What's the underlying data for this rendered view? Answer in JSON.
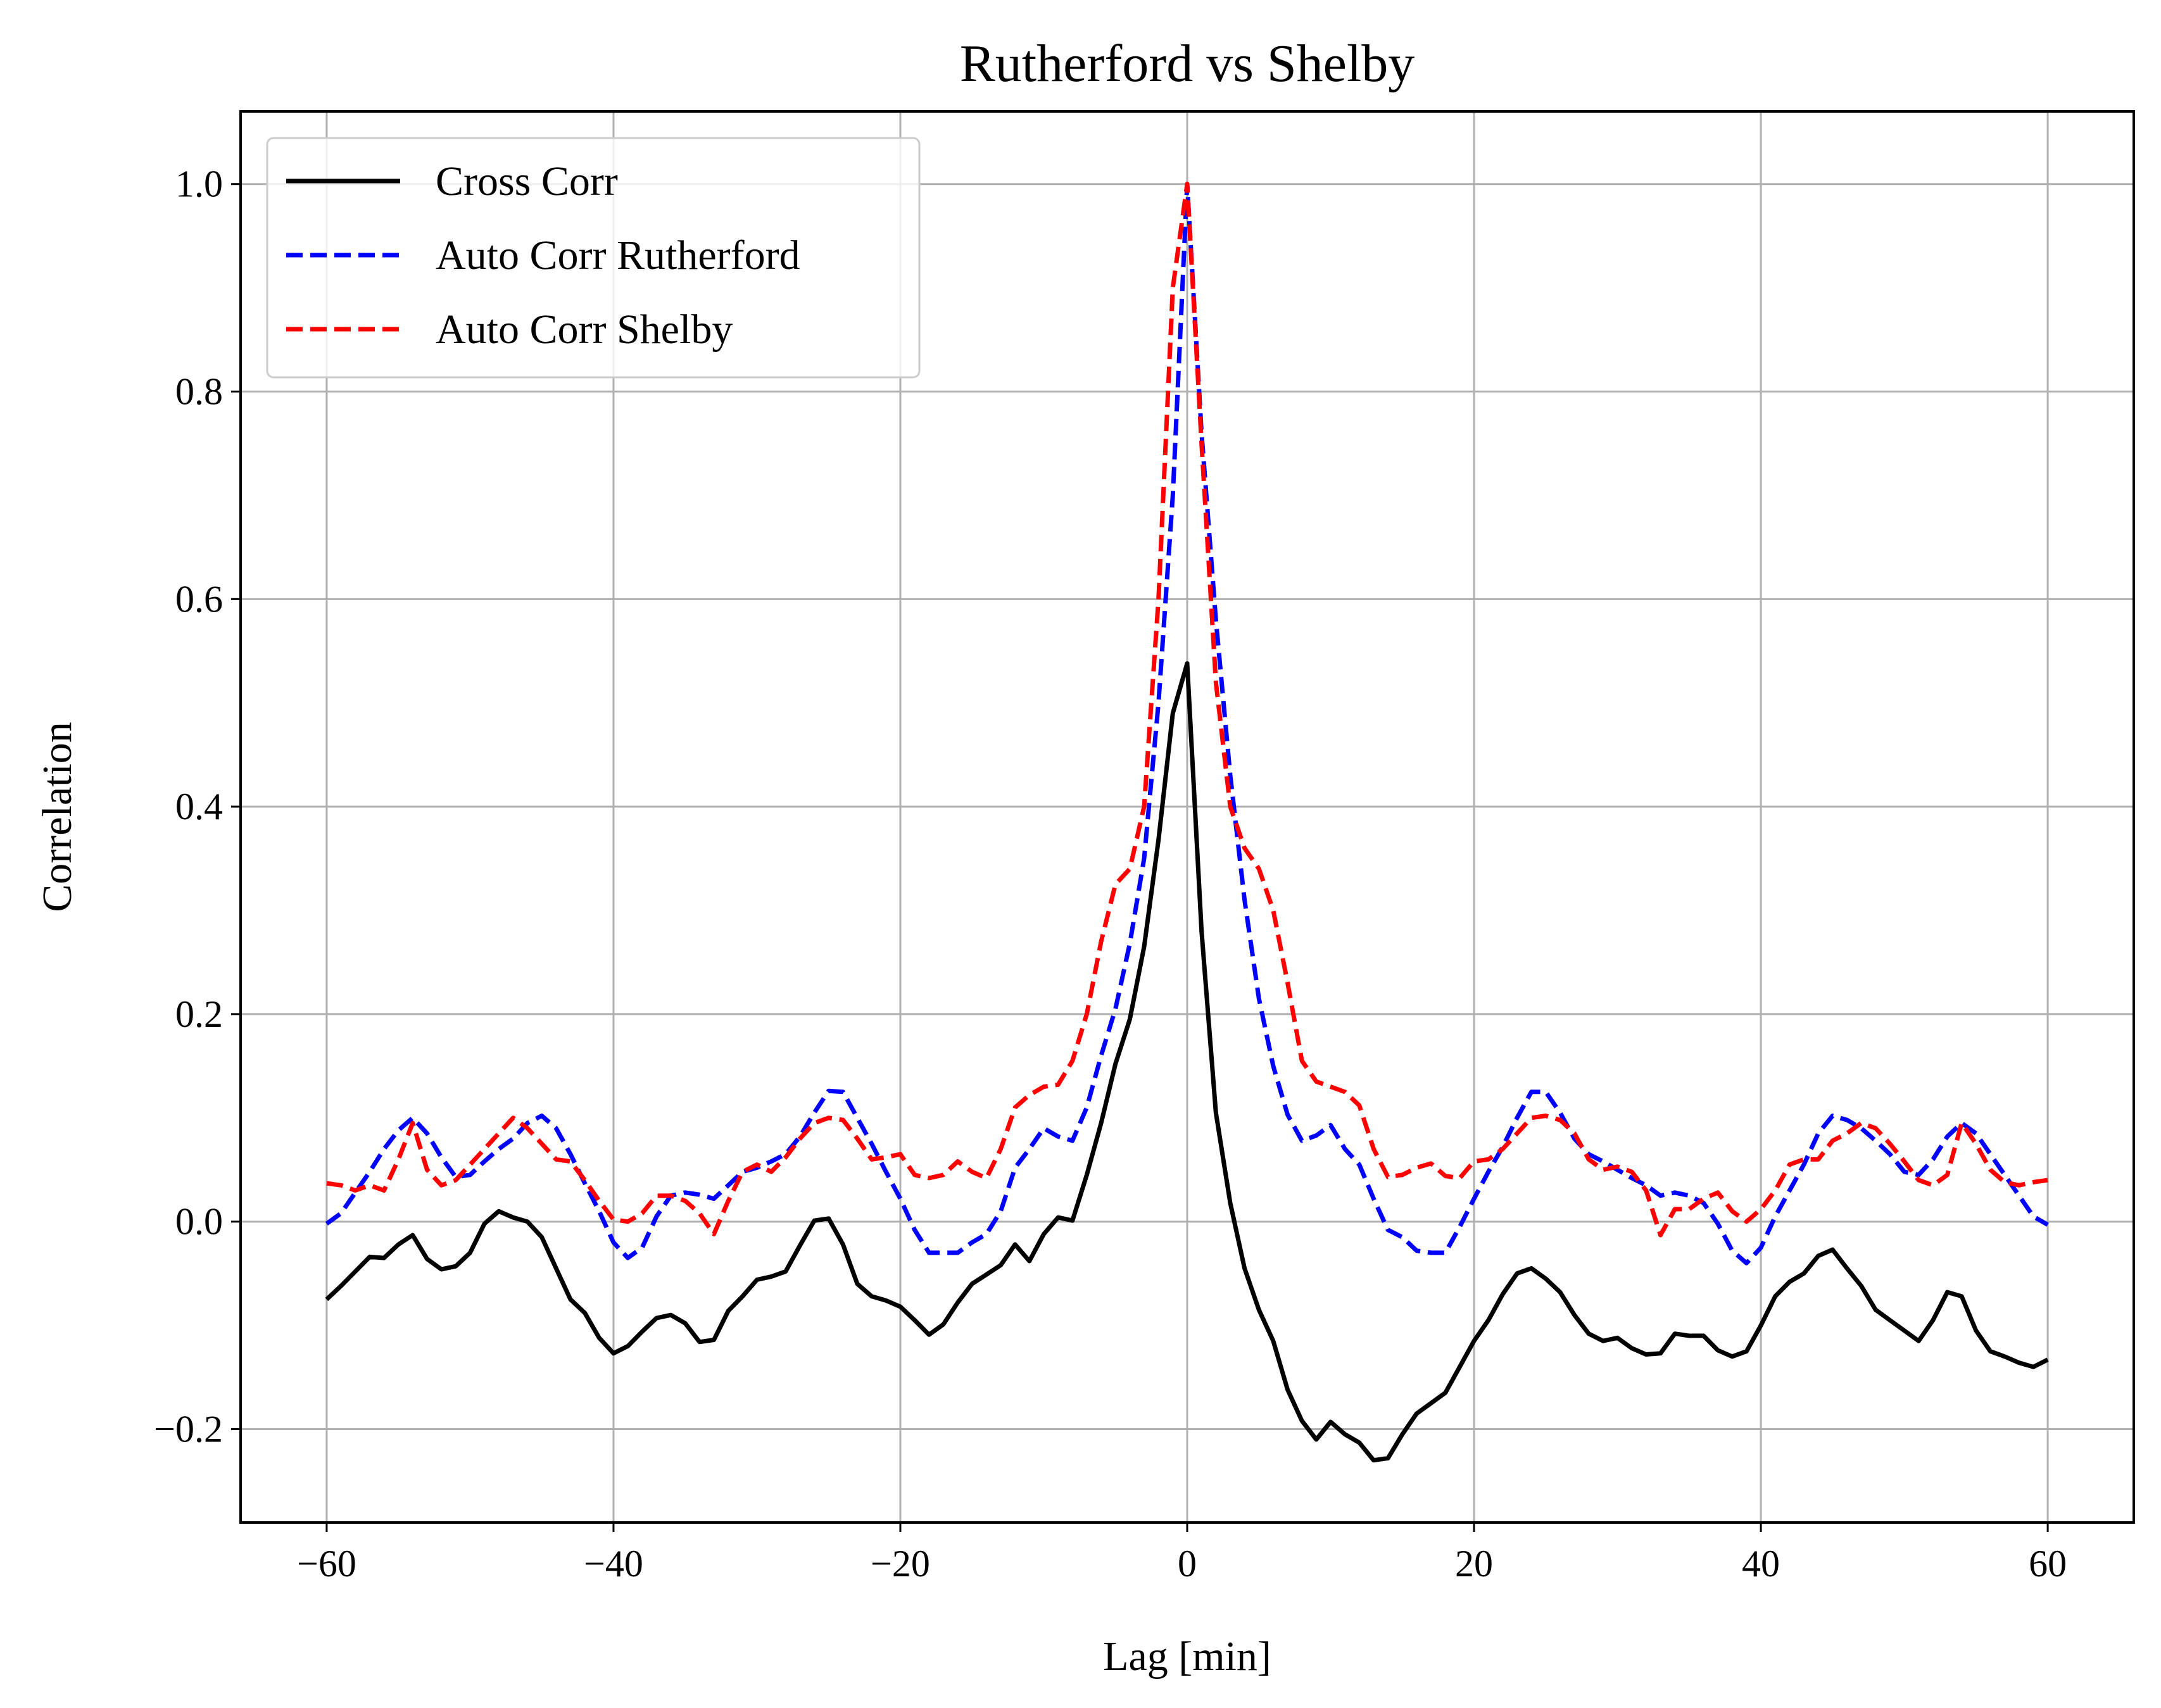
{
  "chart_data": {
    "type": "line",
    "title": "Rutherford vs Shelby",
    "xlabel": "Lag [min]",
    "ylabel": "Correlation",
    "xlim": [
      -66,
      66
    ],
    "ylim": [
      -0.29,
      1.07
    ],
    "xticks": [
      -60,
      -40,
      -20,
      0,
      20,
      40,
      60
    ],
    "xtick_labels": [
      "−60",
      "−40",
      "−20",
      "0",
      "20",
      "40",
      "60"
    ],
    "yticks": [
      -0.2,
      0.0,
      0.2,
      0.4,
      0.6,
      0.8,
      1.0
    ],
    "ytick_labels": [
      "−0.2",
      "0.0",
      "0.2",
      "0.4",
      "0.6",
      "0.8",
      "1.0"
    ],
    "grid": true,
    "legend_position": "upper-left",
    "x": [
      -60,
      -59,
      -58,
      -57,
      -56,
      -55,
      -54,
      -53,
      -52,
      -51,
      -50,
      -49,
      -48,
      -47,
      -46,
      -45,
      -44,
      -43,
      -42,
      -41,
      -40,
      -39,
      -38,
      -37,
      -36,
      -35,
      -34,
      -33,
      -32,
      -31,
      -30,
      -29,
      -28,
      -27,
      -26,
      -25,
      -24,
      -23,
      -22,
      -21,
      -20,
      -19,
      -18,
      -17,
      -16,
      -15,
      -14,
      -13,
      -12,
      -11,
      -10,
      -9,
      -8,
      -7,
      -6,
      -5,
      -4,
      -3,
      -2,
      -1,
      0,
      1,
      2,
      3,
      4,
      5,
      6,
      7,
      8,
      9,
      10,
      11,
      12,
      13,
      14,
      15,
      16,
      17,
      18,
      19,
      20,
      21,
      22,
      23,
      24,
      25,
      26,
      27,
      28,
      29,
      30,
      31,
      32,
      33,
      34,
      35,
      36,
      37,
      38,
      39,
      40,
      41,
      42,
      43,
      44,
      45,
      46,
      47,
      48,
      49,
      50,
      51,
      52,
      53,
      54,
      55,
      56,
      57,
      58,
      59,
      60
    ],
    "series": [
      {
        "name": "Cross Corr",
        "color": "#000000",
        "style": "solid",
        "values": [
          -0.075,
          -0.062,
          -0.048,
          -0.034,
          -0.035,
          -0.022,
          -0.013,
          -0.036,
          -0.046,
          -0.043,
          -0.03,
          -0.002,
          0.01,
          0.004,
          0.0,
          -0.015,
          -0.045,
          -0.075,
          -0.088,
          -0.112,
          -0.127,
          -0.12,
          -0.106,
          -0.093,
          -0.09,
          -0.098,
          -0.116,
          -0.114,
          -0.086,
          -0.072,
          -0.056,
          -0.053,
          -0.048,
          -0.023,
          0.001,
          0.003,
          -0.022,
          -0.06,
          -0.072,
          -0.076,
          -0.082,
          -0.095,
          -0.109,
          -0.099,
          -0.078,
          -0.06,
          -0.051,
          -0.042,
          -0.022,
          -0.038,
          -0.012,
          0.004,
          0.001,
          0.045,
          0.095,
          0.152,
          0.195,
          0.265,
          0.368,
          0.49,
          0.538,
          0.28,
          0.105,
          0.018,
          -0.045,
          -0.085,
          -0.115,
          -0.162,
          -0.192,
          -0.21,
          -0.193,
          -0.205,
          -0.213,
          -0.23,
          -0.228,
          -0.205,
          -0.185,
          -0.175,
          -0.165,
          -0.14,
          -0.115,
          -0.095,
          -0.07,
          -0.05,
          -0.045,
          -0.055,
          -0.068,
          -0.09,
          -0.108,
          -0.115,
          -0.112,
          -0.122,
          -0.128,
          -0.127,
          -0.108,
          -0.11,
          -0.11,
          -0.124,
          -0.13,
          -0.125,
          -0.1,
          -0.072,
          -0.058,
          -0.05,
          -0.033,
          -0.027,
          -0.045,
          -0.062,
          -0.085,
          -0.095,
          -0.105,
          -0.115,
          -0.095,
          -0.068,
          -0.072,
          -0.105,
          -0.125,
          -0.13,
          -0.136,
          -0.14,
          -0.133
        ]
      },
      {
        "name": "Auto Corr Rutherford",
        "color": "#0000ff",
        "style": "dashed",
        "values": [
          -0.002,
          0.008,
          0.028,
          0.048,
          0.07,
          0.088,
          0.1,
          0.085,
          0.062,
          0.043,
          0.045,
          0.058,
          0.07,
          0.08,
          0.095,
          0.102,
          0.09,
          0.065,
          0.037,
          0.01,
          -0.02,
          -0.035,
          -0.025,
          0.005,
          0.025,
          0.028,
          0.026,
          0.022,
          0.035,
          0.048,
          0.052,
          0.058,
          0.065,
          0.082,
          0.105,
          0.126,
          0.125,
          0.1,
          0.075,
          0.048,
          0.022,
          -0.008,
          -0.03,
          -0.03,
          -0.03,
          -0.02,
          -0.012,
          0.01,
          0.052,
          0.07,
          0.09,
          0.082,
          0.078,
          0.11,
          0.16,
          0.205,
          0.268,
          0.35,
          0.5,
          0.7,
          1.0,
          0.76,
          0.58,
          0.43,
          0.31,
          0.215,
          0.15,
          0.103,
          0.078,
          0.083,
          0.093,
          0.07,
          0.055,
          0.022,
          -0.008,
          -0.015,
          -0.028,
          -0.03,
          -0.03,
          -0.005,
          0.022,
          0.048,
          0.072,
          0.1,
          0.125,
          0.125,
          0.105,
          0.08,
          0.065,
          0.058,
          0.05,
          0.042,
          0.035,
          0.025,
          0.028,
          0.025,
          0.018,
          -0.002,
          -0.028,
          -0.04,
          -0.025,
          0.005,
          0.03,
          0.055,
          0.085,
          0.102,
          0.098,
          0.09,
          0.078,
          0.065,
          0.048,
          0.045,
          0.06,
          0.082,
          0.095,
          0.085,
          0.065,
          0.045,
          0.025,
          0.005,
          -0.003
        ]
      },
      {
        "name": "Auto Corr Shelby",
        "color": "#ff0000",
        "style": "dashed",
        "values": [
          0.037,
          0.035,
          0.03,
          0.035,
          0.03,
          0.06,
          0.095,
          0.05,
          0.035,
          0.04,
          0.055,
          0.07,
          0.085,
          0.1,
          0.09,
          0.075,
          0.06,
          0.058,
          0.04,
          0.02,
          0.002,
          0.0,
          0.008,
          0.025,
          0.025,
          0.02,
          0.008,
          -0.012,
          0.02,
          0.048,
          0.055,
          0.048,
          0.062,
          0.08,
          0.095,
          0.1,
          0.098,
          0.08,
          0.06,
          0.062,
          0.065,
          0.045,
          0.042,
          0.045,
          0.058,
          0.048,
          0.042,
          0.07,
          0.11,
          0.122,
          0.13,
          0.132,
          0.155,
          0.2,
          0.27,
          0.325,
          0.34,
          0.4,
          0.6,
          0.9,
          1.0,
          0.75,
          0.52,
          0.4,
          0.36,
          0.34,
          0.3,
          0.23,
          0.155,
          0.135,
          0.13,
          0.125,
          0.112,
          0.07,
          0.043,
          0.045,
          0.052,
          0.056,
          0.044,
          0.042,
          0.058,
          0.06,
          0.07,
          0.085,
          0.1,
          0.102,
          0.098,
          0.085,
          0.06,
          0.05,
          0.053,
          0.048,
          0.03,
          -0.013,
          0.012,
          0.012,
          0.022,
          0.028,
          0.01,
          0.0,
          0.012,
          0.03,
          0.055,
          0.06,
          0.06,
          0.078,
          0.085,
          0.095,
          0.09,
          0.075,
          0.058,
          0.04,
          0.035,
          0.045,
          0.095,
          0.075,
          0.05,
          0.038,
          0.035,
          0.038,
          0.04
        ]
      }
    ]
  }
}
